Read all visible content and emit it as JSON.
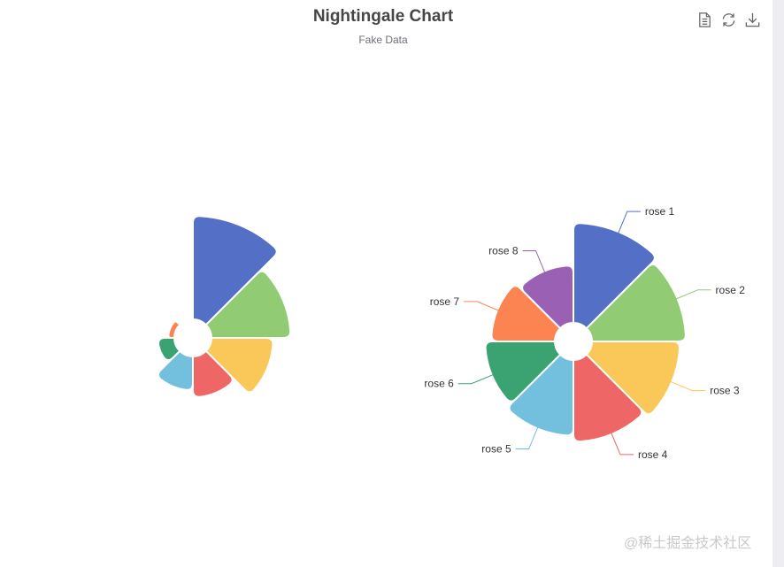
{
  "title": "Nightingale Chart",
  "subtitle": "Fake Data",
  "toolbox": [
    {
      "name": "data-view-icon"
    },
    {
      "name": "restore-icon"
    },
    {
      "name": "save-image-icon"
    }
  ],
  "watermark": "@稀土掘金技术社区",
  "colors": [
    "#5470c6",
    "#91cc75",
    "#fac858",
    "#ee6666",
    "#73c0de",
    "#3ba272",
    "#fc8452",
    "#9a60b4"
  ],
  "chart_data": [
    {
      "type": "pie",
      "rose_type": "radius",
      "labels_visible": false,
      "categories": [
        "rose 1",
        "rose 2",
        "rose 3",
        "rose 4",
        "rose 5",
        "rose 6",
        "rose 7",
        "rose 8"
      ],
      "values": [
        40,
        33,
        28,
        22,
        20,
        15,
        12,
        10
      ]
    },
    {
      "type": "pie",
      "rose_type": "area",
      "labels_visible": true,
      "categories": [
        "rose 1",
        "rose 2",
        "rose 3",
        "rose 4",
        "rose 5",
        "rose 6",
        "rose 7",
        "rose 8"
      ],
      "values": [
        30,
        28,
        26,
        24,
        22,
        20,
        18,
        16
      ]
    }
  ]
}
